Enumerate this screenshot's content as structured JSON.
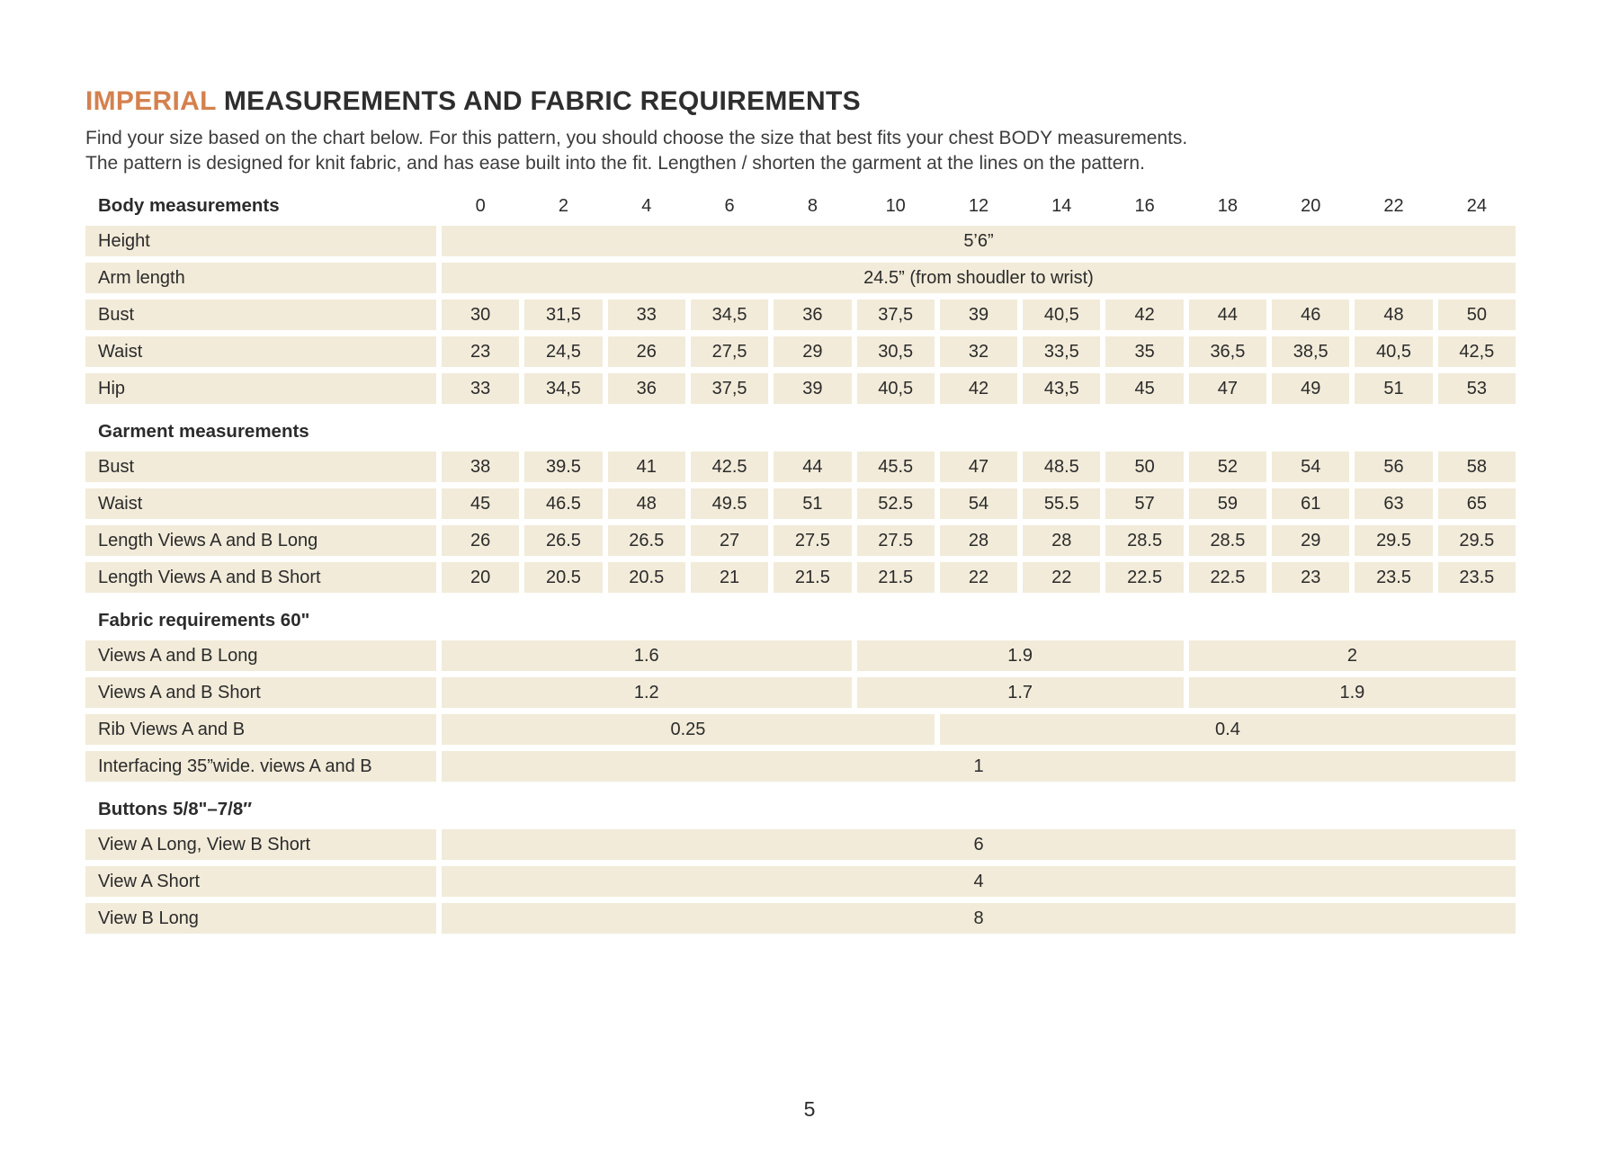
{
  "page": {
    "title_accent": "IMPERIAL",
    "title_rest": " MEASUREMENTS AND FABRIC REQUIREMENTS",
    "intro_line1": "Find your size based on the chart below. For this pattern, you should choose the size that best fits your chest BODY measurements.",
    "intro_line2": "The pattern is designed for knit fabric, and has ease built into the fit. Lengthen / shorten the garment at the lines on the pattern.",
    "page_number": "5"
  },
  "colors": {
    "accent": "#d4814e",
    "row_background": "#f2ebd9",
    "text": "#2b2b2b"
  },
  "table": {
    "header_label": "Body measurements",
    "sizes": [
      "0",
      "2",
      "4",
      "6",
      "8",
      "10",
      "12",
      "14",
      "16",
      "18",
      "20",
      "22",
      "24"
    ],
    "rows": [
      {
        "type": "data",
        "label": "Height",
        "cells": [
          {
            "span": 13,
            "value": "5’6”"
          }
        ]
      },
      {
        "type": "data",
        "label": "Arm length",
        "cells": [
          {
            "span": 13,
            "value": "24.5” (from shoudler to wrist)"
          }
        ]
      },
      {
        "type": "data",
        "label": "Bust",
        "values": [
          "30",
          "31,5",
          "33",
          "34,5",
          "36",
          "37,5",
          "39",
          "40,5",
          "42",
          "44",
          "46",
          "48",
          "50"
        ]
      },
      {
        "type": "data",
        "label": "Waist",
        "values": [
          "23",
          "24,5",
          "26",
          "27,5",
          "29",
          "30,5",
          "32",
          "33,5",
          "35",
          "36,5",
          "38,5",
          "40,5",
          "42,5"
        ]
      },
      {
        "type": "data",
        "label": "Hip",
        "values": [
          "33",
          "34,5",
          "36",
          "37,5",
          "39",
          "40,5",
          "42",
          "43,5",
          "45",
          "47",
          "49",
          "51",
          "53"
        ]
      },
      {
        "type": "section",
        "label": "Garment measurements"
      },
      {
        "type": "data",
        "label": "Bust",
        "values": [
          "38",
          "39.5",
          "41",
          "42.5",
          "44",
          "45.5",
          "47",
          "48.5",
          "50",
          "52",
          "54",
          "56",
          "58"
        ]
      },
      {
        "type": "data",
        "label": "Waist",
        "values": [
          "45",
          "46.5",
          "48",
          "49.5",
          "51",
          "52.5",
          "54",
          "55.5",
          "57",
          "59",
          "61",
          "63",
          "65"
        ]
      },
      {
        "type": "data",
        "label": "Length Views A and B Long",
        "values": [
          "26",
          "26.5",
          "26.5",
          "27",
          "27.5",
          "27.5",
          "28",
          "28",
          "28.5",
          "28.5",
          "29",
          "29.5",
          "29.5"
        ]
      },
      {
        "type": "data",
        "label": "Length Views A and B Short",
        "values": [
          "20",
          "20.5",
          "20.5",
          "21",
          "21.5",
          "21.5",
          "22",
          "22",
          "22.5",
          "22.5",
          "23",
          "23.5",
          "23.5"
        ]
      },
      {
        "type": "section",
        "label": "Fabric requirements 60\""
      },
      {
        "type": "data",
        "label": "Views A and B Long",
        "cells": [
          {
            "span": 5,
            "value": "1.6"
          },
          {
            "span": 4,
            "value": "1.9"
          },
          {
            "span": 4,
            "value": "2"
          }
        ]
      },
      {
        "type": "data",
        "label": "Views A and B Short",
        "cells": [
          {
            "span": 5,
            "value": "1.2"
          },
          {
            "span": 4,
            "value": "1.7"
          },
          {
            "span": 4,
            "value": "1.9"
          }
        ]
      },
      {
        "type": "data",
        "label": "Rib Views A and B",
        "cells": [
          {
            "span": 6,
            "value": "0.25"
          },
          {
            "span": 7,
            "value": "0.4"
          }
        ]
      },
      {
        "type": "data",
        "label": "Interfacing 35”wide. views A and B",
        "cells": [
          {
            "span": 13,
            "value": "1"
          }
        ]
      },
      {
        "type": "section",
        "label": "Buttons 5/8\"–7/8″"
      },
      {
        "type": "data",
        "label": "View A Long, View B Short",
        "cells": [
          {
            "span": 13,
            "value": "6"
          }
        ]
      },
      {
        "type": "data",
        "label": "View A Short",
        "cells": [
          {
            "span": 13,
            "value": "4"
          }
        ]
      },
      {
        "type": "data",
        "label": "View B Long",
        "cells": [
          {
            "span": 13,
            "value": "8"
          }
        ]
      }
    ]
  }
}
